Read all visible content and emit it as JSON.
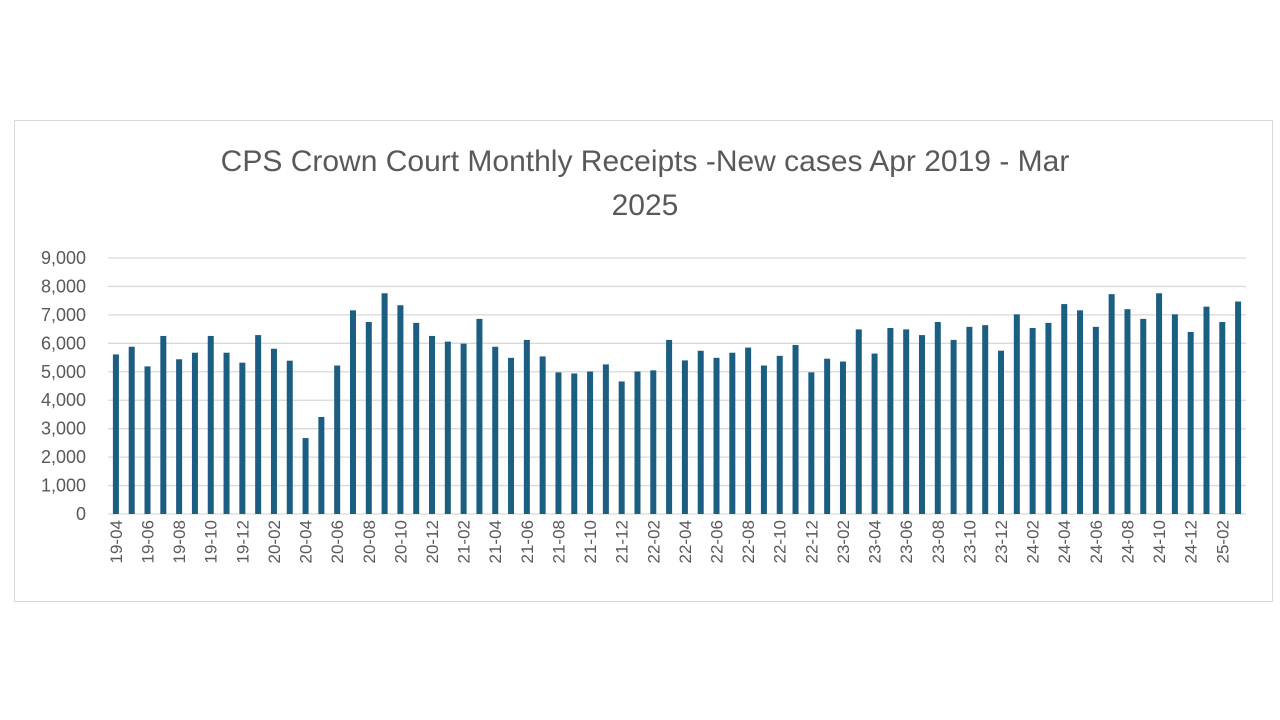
{
  "chart_data": {
    "type": "bar",
    "title_line1": "CPS Crown Court Monthly Receipts -New cases Apr 2019 - Mar",
    "title_line2": "2025",
    "xlabel": "",
    "ylabel": "",
    "ylim": [
      0,
      9000
    ],
    "y_ticks": [
      0,
      1000,
      2000,
      3000,
      4000,
      5000,
      6000,
      7000,
      8000,
      9000
    ],
    "y_tick_labels": [
      "0",
      "1,000",
      "2,000",
      "3,000",
      "4,000",
      "5,000",
      "6,000",
      "7,000",
      "8,000",
      "9,000"
    ],
    "grid": true,
    "bar_color": "#1b5e82",
    "x_tick_labels_every_other_month": [
      "19-04",
      "19-06",
      "19-08",
      "19-10",
      "19-12",
      "20-02",
      "20-04",
      "20-06",
      "20-08",
      "20-10",
      "20-12",
      "21-02",
      "21-04",
      "21-06",
      "21-08",
      "21-10",
      "21-12",
      "22-02",
      "22-04",
      "22-06",
      "22-08",
      "22-10",
      "22-12",
      "23-02",
      "23-04",
      "23-06",
      "23-08",
      "23-10",
      "23-12",
      "24-02",
      "24-04",
      "24-06",
      "24-08",
      "24-10",
      "24-12",
      "25-02"
    ],
    "values": [
      5610,
      5880,
      5190,
      6260,
      5440,
      5670,
      6260,
      5670,
      5320,
      6290,
      5810,
      5390,
      2670,
      3410,
      5220,
      7160,
      6750,
      7760,
      7340,
      6720,
      6260,
      6060,
      5990,
      6860,
      5880,
      5490,
      6120,
      5540,
      4980,
      4940,
      5010,
      5260,
      4660,
      5010,
      5050,
      6120,
      5400,
      5740,
      5490,
      5670,
      5850,
      5220,
      5560,
      5940,
      4980,
      5460,
      5360,
      6490,
      5640,
      6540,
      6490,
      6290,
      6750,
      6120,
      6580,
      6640,
      5740,
      7020,
      6540,
      6720,
      7380,
      7160,
      6580,
      7730,
      7200,
      6860,
      7760,
      7020,
      6400,
      7290,
      6750,
      7470
    ]
  }
}
